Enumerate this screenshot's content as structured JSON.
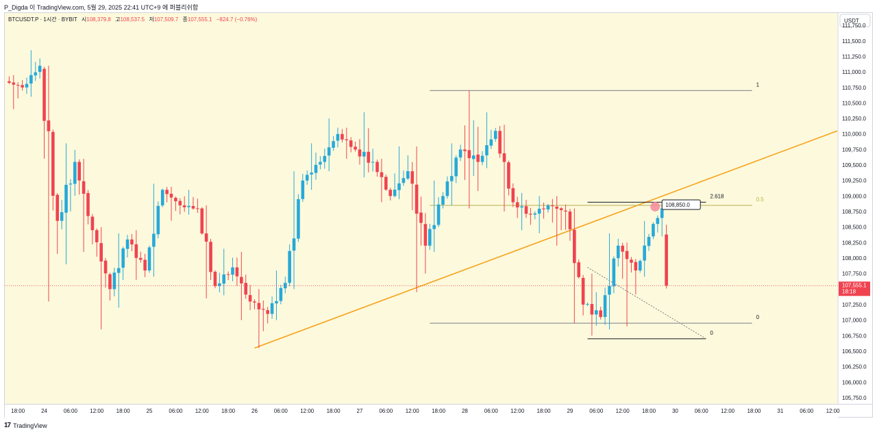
{
  "header": {
    "text": "P_Digda 이 TradingView.com, 5월 29, 2025 22:41 UTC+9 에 퍼블리쉬함"
  },
  "footer": {
    "logo_text": "TradingView",
    "logo_icon": "tradingview-logo-icon"
  },
  "legend": {
    "symbol": "BTCUSDT.P · 1시간 · BYBIT",
    "open_label": "시",
    "open_value": "108,379.8",
    "high_label": "고",
    "high_value": "108,537.5",
    "low_label": "저",
    "low_value": "107,509.7",
    "close_label": "종",
    "close_value": "107,555.1",
    "change": "−824.7 (−0.76%)"
  },
  "price_axis": {
    "currency": "USDT",
    "ticks": [
      "111,750.0",
      "111,500.0",
      "111,250.0",
      "111,000.0",
      "110,750.0",
      "110,500.0",
      "110,250.0",
      "110,000.0",
      "109,750.0",
      "109,500.0",
      "109,250.0",
      "109,000.0",
      "108,750.0",
      "108,500.0",
      "108,250.0",
      "108,000.0",
      "107,750.0",
      "107,500.0",
      "107,250.0",
      "107,000.0",
      "106,750.0",
      "106,500.0",
      "106,250.0",
      "106,000.0",
      "105,750.0"
    ],
    "last_price": "107,555.1",
    "countdown": "18:18"
  },
  "time_axis": [
    "18:00",
    "24",
    "06:00",
    "12:00",
    "18:00",
    "25",
    "06:00",
    "12:00",
    "18:00",
    "26",
    "06:00",
    "12:00",
    "18:00",
    "27",
    "06:00",
    "12:00",
    "18:00",
    "28",
    "06:00",
    "12:00",
    "18:00",
    "29",
    "06:00",
    "12:00",
    "18:00",
    "30",
    "06:00",
    "12:00",
    "18:00",
    "31",
    "06:00",
    "12:00"
  ],
  "annotations": {
    "fib_left": {
      "level_1": "1",
      "level_05": "0.5",
      "level_0": "0"
    },
    "fib_right": {
      "level_2618": "2.618",
      "level_0": "0"
    },
    "price_callout": "108,850.0"
  },
  "colors": {
    "background": "#fdf9dc",
    "up": "#26a9d9",
    "down": "#ef4350",
    "trendline": "#f7a21b",
    "fib_mid": "#b8b04a",
    "last_price_tag": "#ef4350"
  },
  "chart_data": {
    "type": "candlestick",
    "symbol": "BTCUSDT.P",
    "interval": "1h",
    "ylim": [
      105650,
      111950
    ],
    "x_range_start": "2025-05-23 15:00",
    "x_range_end": "2025-05-31 13:00",
    "ohlc_approx": [
      {
        "t": "2025-05-23 16:00",
        "o": 110850,
        "h": 110950,
        "l": 110400,
        "c": 110750
      },
      {
        "t": "2025-05-23 20:00",
        "o": 110750,
        "h": 111350,
        "l": 110600,
        "c": 111100
      },
      {
        "t": "2025-05-24 00:00",
        "o": 111050,
        "h": 111100,
        "l": 107300,
        "c": 108600
      },
      {
        "t": "2025-05-24 04:00",
        "o": 108600,
        "h": 109850,
        "l": 107900,
        "c": 109550
      },
      {
        "t": "2025-05-24 08:00",
        "o": 109550,
        "h": 109600,
        "l": 108100,
        "c": 108450
      },
      {
        "t": "2025-05-24 12:00",
        "o": 108450,
        "h": 108500,
        "l": 106850,
        "c": 107500
      },
      {
        "t": "2025-05-24 16:00",
        "o": 107500,
        "h": 108400,
        "l": 107200,
        "c": 108300
      },
      {
        "t": "2025-05-24 20:00",
        "o": 108300,
        "h": 108450,
        "l": 107650,
        "c": 107800
      },
      {
        "t": "2025-05-25 00:00",
        "o": 107800,
        "h": 109200,
        "l": 107700,
        "c": 109100
      },
      {
        "t": "2025-05-25 04:00",
        "o": 109100,
        "h": 109150,
        "l": 108600,
        "c": 108850
      },
      {
        "t": "2025-05-25 08:00",
        "o": 108850,
        "h": 109100,
        "l": 108700,
        "c": 108800
      },
      {
        "t": "2025-05-25 12:00",
        "o": 108800,
        "h": 108850,
        "l": 107350,
        "c": 107550
      },
      {
        "t": "2025-05-25 16:00",
        "o": 107550,
        "h": 108150,
        "l": 107400,
        "c": 107850
      },
      {
        "t": "2025-05-25 20:00",
        "o": 107850,
        "h": 108100,
        "l": 107000,
        "c": 107300
      },
      {
        "t": "2025-05-26 00:00",
        "o": 107300,
        "h": 107500,
        "l": 106550,
        "c": 107100
      },
      {
        "t": "2025-05-26 04:00",
        "o": 107100,
        "h": 107800,
        "l": 107000,
        "c": 107600
      },
      {
        "t": "2025-05-26 08:00",
        "o": 107600,
        "h": 109400,
        "l": 107500,
        "c": 109250
      },
      {
        "t": "2025-05-26 12:00",
        "o": 109250,
        "h": 109850,
        "l": 109100,
        "c": 109550
      },
      {
        "t": "2025-05-26 16:00",
        "o": 109550,
        "h": 110250,
        "l": 109400,
        "c": 110000
      },
      {
        "t": "2025-05-26 20:00",
        "o": 110000,
        "h": 110100,
        "l": 109600,
        "c": 109750
      },
      {
        "t": "2025-05-27 00:00",
        "o": 109750,
        "h": 110350,
        "l": 109300,
        "c": 109550
      },
      {
        "t": "2025-05-27 04:00",
        "o": 109550,
        "h": 109600,
        "l": 108900,
        "c": 109000
      },
      {
        "t": "2025-05-27 08:00",
        "o": 109000,
        "h": 109800,
        "l": 108950,
        "c": 109400
      },
      {
        "t": "2025-05-27 12:00",
        "o": 109400,
        "h": 109800,
        "l": 107450,
        "c": 108200
      },
      {
        "t": "2025-05-27 16:00",
        "o": 108200,
        "h": 109250,
        "l": 108100,
        "c": 109000
      },
      {
        "t": "2025-05-27 20:00",
        "o": 109000,
        "h": 109850,
        "l": 108850,
        "c": 109750
      },
      {
        "t": "2025-05-28 00:00",
        "o": 109750,
        "h": 110700,
        "l": 108800,
        "c": 109550
      },
      {
        "t": "2025-05-28 04:00",
        "o": 109550,
        "h": 110350,
        "l": 109450,
        "c": 110050
      },
      {
        "t": "2025-05-28 08:00",
        "o": 110050,
        "h": 110150,
        "l": 108750,
        "c": 108900
      },
      {
        "t": "2025-05-28 12:00",
        "o": 108900,
        "h": 109050,
        "l": 108450,
        "c": 108700
      },
      {
        "t": "2025-05-28 16:00",
        "o": 108700,
        "h": 109000,
        "l": 108400,
        "c": 108850
      },
      {
        "t": "2025-05-28 20:00",
        "o": 108850,
        "h": 109000,
        "l": 108200,
        "c": 108750
      },
      {
        "t": "2025-05-29 00:00",
        "o": 108750,
        "h": 108800,
        "l": 106950,
        "c": 107250
      },
      {
        "t": "2025-05-29 04:00",
        "o": 107250,
        "h": 107750,
        "l": 106750,
        "c": 107050
      },
      {
        "t": "2025-05-29 08:00",
        "o": 107050,
        "h": 108400,
        "l": 106850,
        "c": 108200
      },
      {
        "t": "2025-05-29 12:00",
        "o": 108200,
        "h": 108250,
        "l": 106900,
        "c": 107800
      },
      {
        "t": "2025-05-29 16:00",
        "o": 107800,
        "h": 108600,
        "l": 107700,
        "c": 108550
      },
      {
        "t": "2025-05-29 20:00",
        "o": 108550,
        "h": 108850,
        "l": 108350,
        "c": 108800
      },
      {
        "t": "2025-05-29 22:00",
        "o": 108379.8,
        "h": 108537.5,
        "l": 107509.7,
        "c": 107555.1
      }
    ],
    "trendline": {
      "from": {
        "t": "2025-05-26 00:00",
        "price": 106550
      },
      "to": {
        "t": "2025-05-31 13:00",
        "price": 110050
      }
    },
    "fib_left": {
      "level_1": 110700,
      "level_05": 108850,
      "level_0": 106950,
      "start": "2025-05-27 16:00",
      "end": "2025-05-29 22:00"
    },
    "fib_right": {
      "level_2618": 108900,
      "level_0": 106700,
      "start": "2025-05-29 04:00",
      "end": "2025-05-30 00:00"
    },
    "price_callout": 108850.0,
    "last_price": 107555.1
  }
}
